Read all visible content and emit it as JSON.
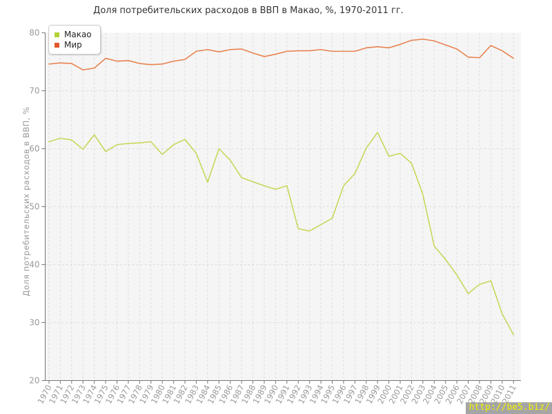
{
  "watermark": "http://be5.biz/",
  "colors": {
    "plot_bg": "#f5f5f5",
    "grid": "#dcdcdc",
    "axis": "#757575",
    "tick_label": "#999999",
    "title": "#333333"
  },
  "chart_data": {
    "type": "line",
    "title": "Доля потребительских расходов в ВВП в Макао, %, 1970-2011 гг.",
    "ylabel": "Доля потребительских расходов в ВВП, %",
    "xlabel": "",
    "ylim": [
      20,
      80
    ],
    "yticks": [
      20,
      30,
      40,
      50,
      60,
      70,
      80
    ],
    "grid": true,
    "grid_style": "dashed",
    "legend_position": "top-left",
    "x": [
      1970,
      1971,
      1972,
      1973,
      1974,
      1975,
      1976,
      1977,
      1978,
      1979,
      1980,
      1981,
      1982,
      1983,
      1984,
      1985,
      1986,
      1987,
      1988,
      1989,
      1990,
      1991,
      1992,
      1993,
      1994,
      1995,
      1996,
      1997,
      1998,
      1999,
      2000,
      2001,
      2002,
      2003,
      2004,
      2005,
      2006,
      2007,
      2008,
      2009,
      2010,
      2011
    ],
    "series": [
      {
        "name": "Макао",
        "marker_color": "#b2d235",
        "line_color": "#c9d65a",
        "values": [
          61.2,
          61.8,
          61.5,
          59.9,
          62.4,
          59.5,
          60.7,
          60.9,
          61.0,
          61.2,
          59.0,
          60.7,
          61.6,
          59.2,
          54.2,
          60.0,
          58.0,
          55.0,
          54.3,
          53.6,
          53.0,
          53.6,
          46.2,
          45.8,
          46.9,
          48.0,
          53.6,
          55.7,
          60.1,
          62.8,
          58.7,
          59.2,
          57.5,
          52.1,
          43.2,
          40.9,
          38.2,
          35.0,
          36.6,
          37.2,
          31.5,
          27.9
        ]
      },
      {
        "name": "Мир",
        "marker_color": "#e2572b",
        "line_color": "#e8824f",
        "values": [
          74.6,
          74.8,
          74.7,
          73.6,
          73.9,
          75.6,
          75.1,
          75.2,
          74.7,
          74.5,
          74.6,
          75.1,
          75.4,
          76.8,
          77.1,
          76.7,
          77.1,
          77.2,
          76.5,
          75.9,
          76.3,
          76.8,
          76.9,
          76.9,
          77.1,
          76.8,
          76.8,
          76.8,
          77.4,
          77.6,
          77.4,
          78.0,
          78.7,
          78.9,
          78.6,
          77.9,
          77.2,
          75.8,
          75.7,
          77.8,
          76.9,
          75.6
        ]
      }
    ]
  }
}
